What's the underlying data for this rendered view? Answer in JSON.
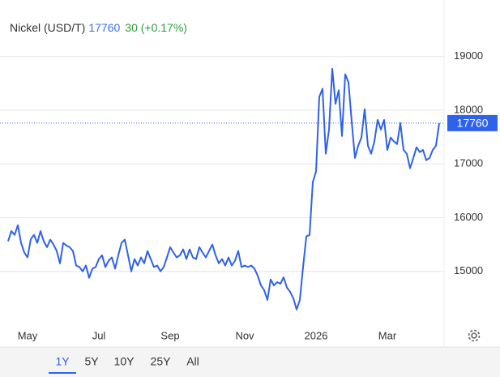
{
  "chart_data": {
    "type": "line",
    "title": "Nickel (USD/T)",
    "price": 17760,
    "change": 30,
    "change_label": "(+0.17%)",
    "color": "#2f62ea",
    "grid": true,
    "ylim": [
      14000,
      19750
    ],
    "yticks": [
      15000,
      16000,
      17000,
      18000,
      19000
    ],
    "categories": [
      null,
      null,
      null,
      null,
      null,
      null,
      "May",
      null,
      null,
      null,
      null,
      null,
      null,
      null,
      null,
      null,
      null,
      null,
      null,
      null,
      null,
      null,
      null,
      null,
      null,
      null,
      null,
      null,
      "Jul",
      null,
      null,
      null,
      null,
      null,
      null,
      null,
      null,
      null,
      null,
      null,
      null,
      null,
      null,
      null,
      null,
      null,
      null,
      null,
      null,
      null,
      "Sep",
      null,
      null,
      null,
      null,
      null,
      null,
      null,
      null,
      null,
      null,
      null,
      null,
      null,
      null,
      null,
      null,
      null,
      null,
      null,
      null,
      null,
      null,
      "Nov",
      null,
      null,
      null,
      null,
      null,
      null,
      null,
      null,
      null,
      null,
      null,
      null,
      null,
      null,
      null,
      null,
      null,
      null,
      null,
      null,
      null,
      "2026",
      null,
      null,
      null,
      null,
      null,
      null,
      null,
      null,
      null,
      null,
      null,
      null,
      null,
      null,
      null,
      null,
      null,
      null,
      null,
      null,
      null,
      "Mar",
      null,
      null,
      null,
      null,
      null,
      null,
      null,
      null,
      null,
      null,
      null,
      null,
      null,
      null,
      null,
      null
    ],
    "values": [
      15560,
      15750,
      15680,
      15860,
      15530,
      15350,
      15260,
      15600,
      15680,
      15530,
      15750,
      15560,
      15450,
      15590,
      15500,
      15380,
      15150,
      15530,
      15480,
      15450,
      15380,
      15110,
      15080,
      15000,
      15110,
      14880,
      15050,
      15080,
      15230,
      15300,
      15080,
      15200,
      15260,
      15050,
      15300,
      15530,
      15590,
      15300,
      15000,
      15230,
      15110,
      15260,
      15150,
      15380,
      15230,
      15080,
      15110,
      15000,
      15080,
      15260,
      15450,
      15350,
      15260,
      15300,
      15410,
      15230,
      15410,
      15260,
      15230,
      15450,
      15350,
      15260,
      15380,
      15500,
      15300,
      15150,
      15230,
      15110,
      15260,
      15110,
      15200,
      15380,
      15080,
      15110,
      15080,
      15110,
      15050,
      14920,
      14740,
      14650,
      14470,
      14850,
      14740,
      14800,
      14770,
      14890,
      14700,
      14620,
      14500,
      14290,
      14470,
      15080,
      15650,
      15680,
      16660,
      16860,
      18250,
      18400,
      17190,
      17640,
      18770,
      18120,
      18370,
      17520,
      18670,
      18520,
      17790,
      17110,
      17340,
      17490,
      18020,
      17340,
      17190,
      17420,
      17820,
      17640,
      17820,
      17260,
      17490,
      17420,
      17370,
      17760,
      17260,
      17190,
      16920,
      17110,
      17310,
      17220,
      17260,
      17070,
      17110,
      17260,
      17340,
      17760
    ]
  },
  "controls": {
    "ranges": [
      "1Y",
      "5Y",
      "10Y",
      "25Y",
      "All"
    ],
    "selected": 0
  }
}
